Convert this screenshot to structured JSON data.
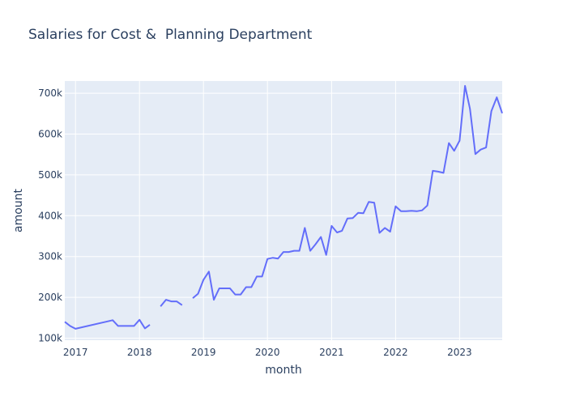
{
  "chart_data": {
    "type": "line",
    "title": "Salaries for Cost &  Planning Department",
    "xlabel": "month",
    "ylabel": "amount",
    "x_tick_labels": [
      "2017",
      "2018",
      "2019",
      "2020",
      "2021",
      "2022",
      "2023"
    ],
    "x_tick_values": [
      "2017-01-01",
      "2018-01-01",
      "2019-01-01",
      "2020-01-01",
      "2021-01-01",
      "2022-01-01",
      "2023-01-01"
    ],
    "xlim": [
      "2016-11-01",
      "2023-09-01"
    ],
    "y_tick_labels": [
      "100k",
      "200k",
      "300k",
      "400k",
      "500k",
      "600k",
      "700k"
    ],
    "y_tick_values": [
      100000,
      200000,
      300000,
      400000,
      500000,
      600000,
      700000
    ],
    "ylim": [
      95000,
      730000
    ],
    "grid": true,
    "series": [
      {
        "color": "#636efa",
        "segments": [
          {
            "x": [
              "2016-11-01",
              "2016-12-01",
              "2017-01-01",
              "2017-08-01",
              "2017-09-01",
              "2017-10-01",
              "2017-11-01",
              "2017-12-01",
              "2018-01-01",
              "2018-02-01",
              "2018-03-01"
            ],
            "y": [
              140000,
              130000,
              123000,
              144000,
              130000,
              130000,
              130000,
              130000,
              145000,
              124000,
              133000
            ]
          },
          {
            "x": [
              "2018-05-01",
              "2018-06-01",
              "2018-07-01",
              "2018-08-01",
              "2018-09-01"
            ],
            "y": [
              178000,
              194000,
              190000,
              190000,
              181000
            ]
          },
          {
            "x": [
              "2018-11-01",
              "2018-12-01",
              "2019-01-01",
              "2019-02-01",
              "2019-03-01",
              "2019-04-01",
              "2019-05-01",
              "2019-06-01",
              "2019-07-01",
              "2019-08-01",
              "2019-09-01",
              "2019-10-01",
              "2019-11-01",
              "2019-12-01",
              "2020-01-01",
              "2020-02-01",
              "2020-03-01",
              "2020-04-01",
              "2020-05-01",
              "2020-06-01",
              "2020-07-01",
              "2020-08-01",
              "2020-09-01",
              "2020-10-01",
              "2020-11-01",
              "2020-12-01",
              "2021-01-01",
              "2021-02-01",
              "2021-03-01",
              "2021-04-01",
              "2021-05-01",
              "2021-06-01",
              "2021-07-01",
              "2021-08-01",
              "2021-09-01",
              "2021-10-01",
              "2021-11-01",
              "2021-12-01",
              "2022-01-01",
              "2022-02-01",
              "2022-03-01",
              "2022-04-01",
              "2022-05-01",
              "2022-06-01",
              "2022-07-01",
              "2022-08-01",
              "2022-09-01",
              "2022-10-01",
              "2022-11-01",
              "2022-12-01",
              "2023-01-01",
              "2023-02-01",
              "2023-03-01",
              "2023-04-01",
              "2023-05-01",
              "2023-06-01",
              "2023-07-01",
              "2023-08-01",
              "2023-09-01"
            ],
            "y": [
              198000,
              209000,
              243000,
              263000,
              194000,
              222000,
              222000,
              222000,
              207000,
              207000,
              225000,
              225000,
              251000,
              251000,
              294000,
              297000,
              295000,
              311000,
              311000,
              314000,
              314000,
              370000,
              314000,
              330000,
              348000,
              304000,
              375000,
              359000,
              363000,
              393000,
              394000,
              407000,
              406000,
              434000,
              432000,
              358000,
              370000,
              361000,
              423000,
              411000,
              411000,
              412000,
              411000,
              413000,
              425000,
              510000,
              508000,
              505000,
              578000,
              559000,
              584000,
              718000,
              662000,
              551000,
              562000,
              567000,
              656000,
              690000,
              651000
            ]
          }
        ]
      }
    ]
  }
}
